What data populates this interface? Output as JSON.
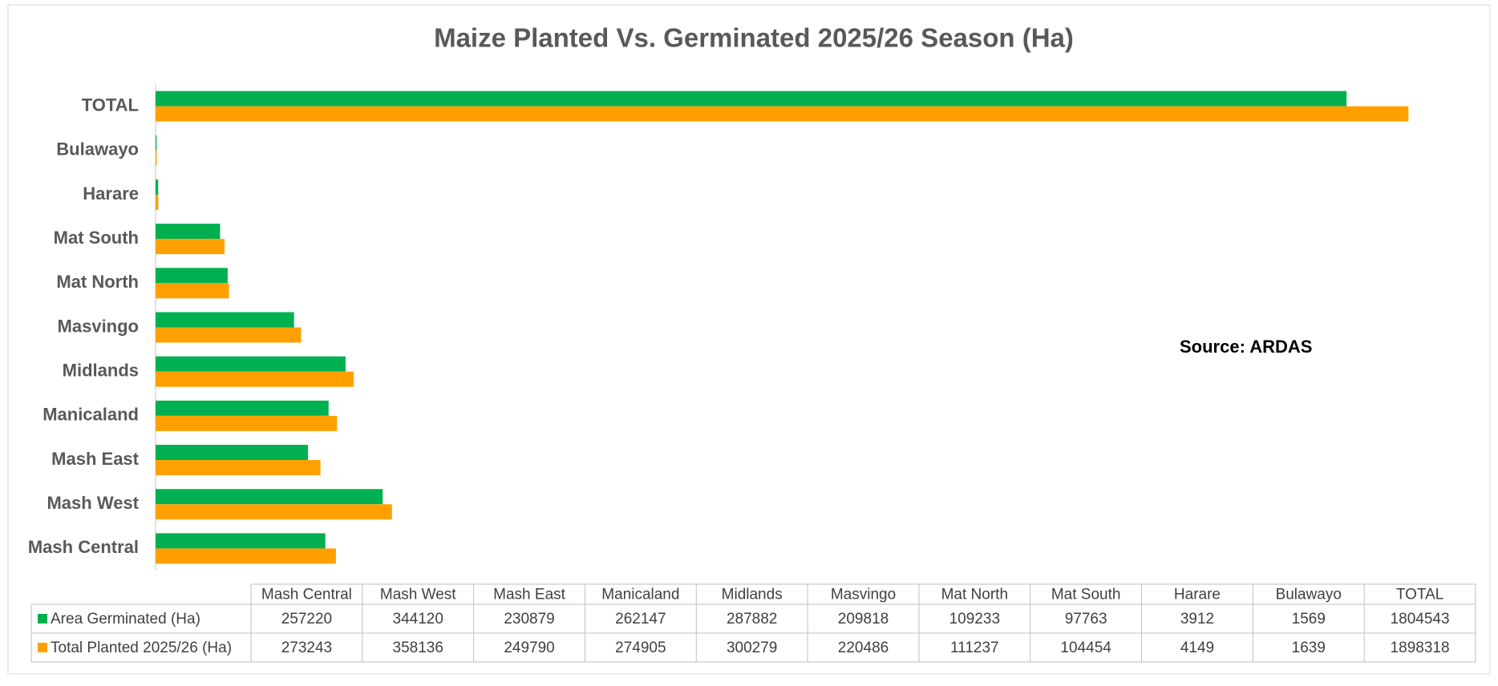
{
  "chart_data": {
    "type": "bar",
    "orientation": "horizontal",
    "title": "Maize Planted Vs. Germinated 2025/26 Season (Ha)",
    "annotation": "Source: ARDAS",
    "categories": [
      "Mash Central",
      "Mash West",
      "Mash East",
      "Manicaland",
      "Midlands",
      "Masvingo",
      "Mat North",
      "Mat South",
      "Harare",
      "Bulawayo",
      "TOTAL"
    ],
    "series": [
      {
        "name": "Area Germinated (Ha)",
        "color": "#00b050",
        "values": [
          257220,
          344120,
          230879,
          262147,
          287882,
          209818,
          109233,
          97763,
          3912,
          1569,
          1804543
        ]
      },
      {
        "name": "Total Planted 2025/26 (Ha)",
        "color": "#ffa000",
        "values": [
          273243,
          358136,
          249790,
          274905,
          300279,
          220486,
          111237,
          104454,
          4149,
          1639,
          1898318
        ]
      }
    ],
    "xlim": [
      0,
      2000000
    ],
    "grid": false
  }
}
